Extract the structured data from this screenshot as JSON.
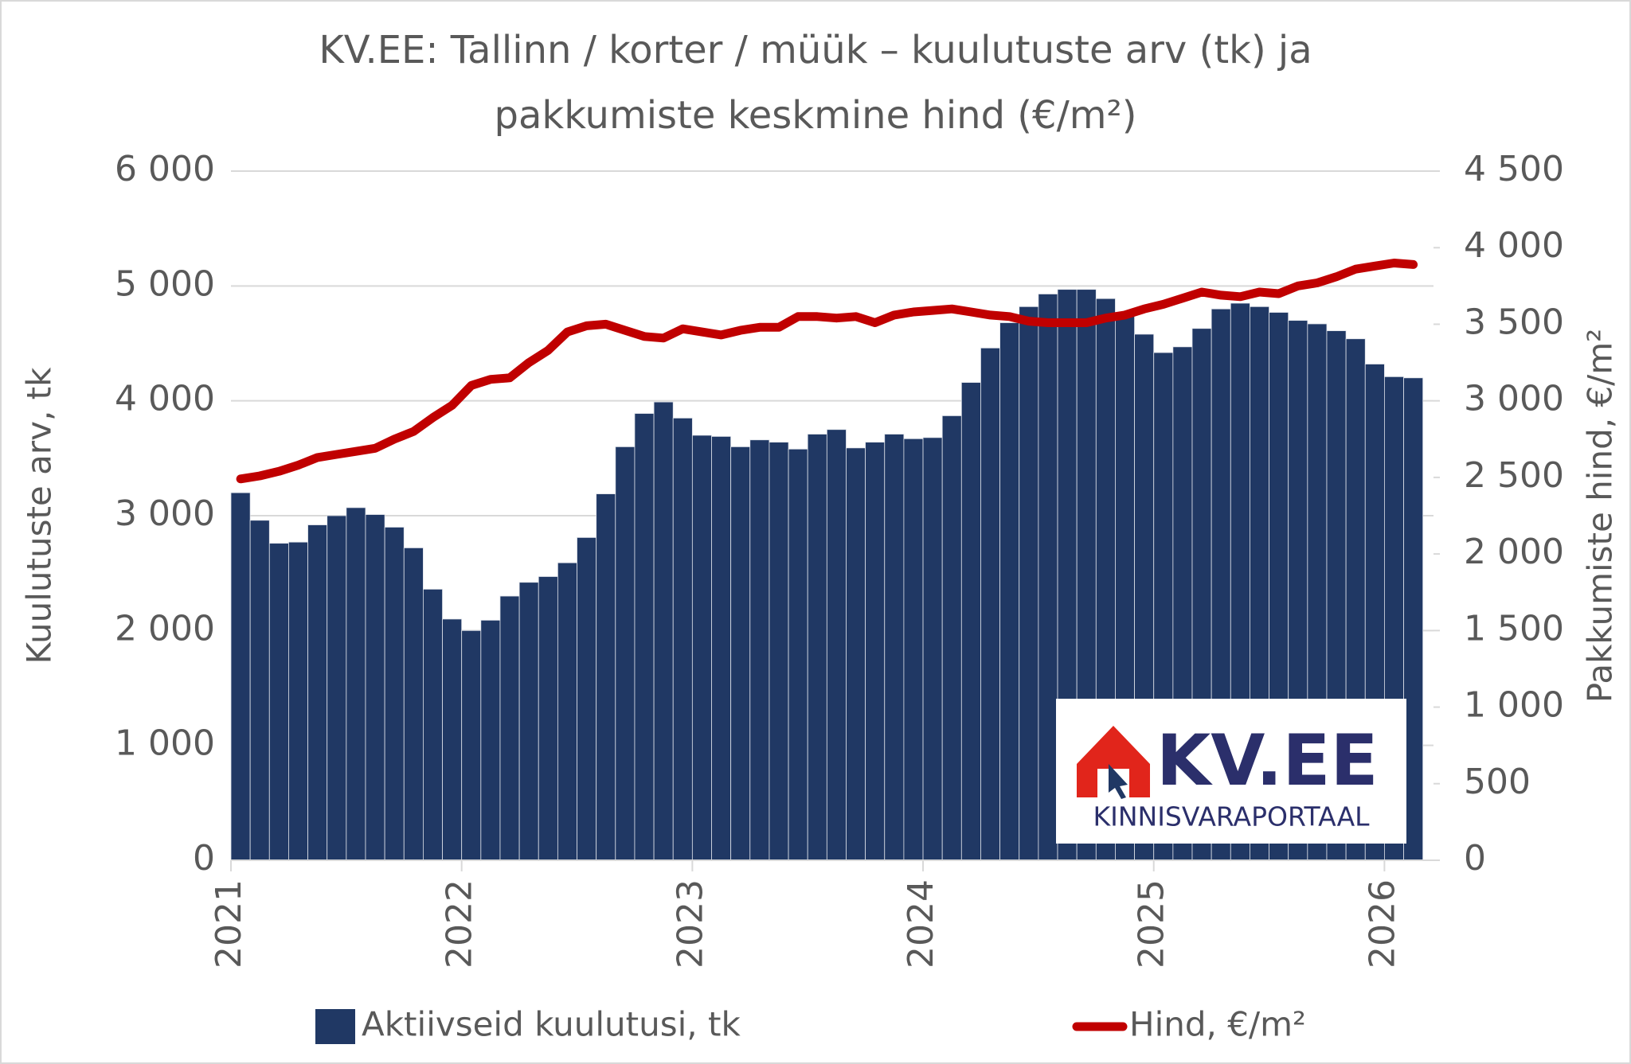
{
  "chart_data": {
    "type": "bar_line",
    "title": [
      "KV.EE: Tallinn / korter / müük – kuulutuste arv (tk) ja",
      "pakkumiste keskmine hind (€/m²)"
    ],
    "y_label": "Kuulutuste arv, tk",
    "y2_label": "Pakkumiste hind, €/m²",
    "categories": [
      "2021",
      null,
      null,
      null,
      null,
      null,
      null,
      null,
      null,
      null,
      null,
      null,
      "2022",
      null,
      null,
      null,
      null,
      null,
      null,
      null,
      null,
      null,
      null,
      null,
      "2023",
      null,
      null,
      null,
      null,
      null,
      null,
      null,
      null,
      null,
      null,
      null,
      "2024",
      null,
      null,
      null,
      null,
      null,
      null,
      null,
      null,
      null,
      null,
      null,
      "2025",
      null,
      null,
      null,
      null,
      null,
      null,
      null,
      null,
      null,
      null,
      null,
      "2026",
      null
    ],
    "series": [
      {
        "name": "Aktiivseid kuulutusi, tk",
        "type": "bar",
        "color": "#203864",
        "values": [
          3200,
          2960,
          2760,
          2770,
          2920,
          3000,
          3070,
          3010,
          2900,
          2720,
          2360,
          2100,
          2000,
          2090,
          2300,
          2420,
          2470,
          2590,
          2810,
          3190,
          3600,
          3890,
          3990,
          3850,
          3700,
          3690,
          3600,
          3660,
          3640,
          3580,
          3710,
          3750,
          3590,
          3640,
          3710,
          3670,
          3680,
          3870,
          4160,
          4460,
          4680,
          4820,
          4930,
          4970,
          4970,
          4890,
          4740,
          4580,
          4420,
          4470,
          4630,
          4800,
          4850,
          4820,
          4770,
          4700,
          4670,
          4610,
          4540,
          4320,
          4210,
          4200
        ]
      },
      {
        "name": "Hind, €/m²",
        "type": "line",
        "color": "#c00000",
        "axis": "y2",
        "values": [
          2490,
          2510,
          2540,
          2580,
          2630,
          2650,
          2670,
          2690,
          2750,
          2800,
          2890,
          2970,
          3100,
          3140,
          3150,
          3250,
          3330,
          3450,
          3490,
          3500,
          3460,
          3420,
          3410,
          3470,
          3450,
          3430,
          3460,
          3480,
          3480,
          3550,
          3550,
          3540,
          3550,
          3510,
          3560,
          3580,
          3590,
          3600,
          3580,
          3560,
          3550,
          3520,
          3510,
          3510,
          3510,
          3540,
          3560,
          3600,
          3630,
          3670,
          3710,
          3690,
          3680,
          3710,
          3700,
          3750,
          3770,
          3810,
          3860,
          3880,
          3900,
          3890
        ]
      }
    ],
    "ylim": [
      0,
      6000
    ],
    "yticks": [
      0,
      {
        "value": 1000,
        "label": "1 000"
      },
      {
        "value": 2000,
        "label": "2 000"
      },
      {
        "value": 3000,
        "label": "3 000"
      },
      {
        "value": 4000,
        "label": "4 000"
      },
      {
        "value": 5000,
        "label": "5 000"
      },
      {
        "value": 6000,
        "label": "6 000"
      }
    ],
    "y2lim": [
      0,
      4500
    ],
    "y2ticks": [
      0,
      500,
      {
        "value": 1000,
        "label": "1 000"
      },
      {
        "value": 1500,
        "label": "1 500"
      },
      {
        "value": 2000,
        "label": "2 000"
      },
      {
        "value": 2500,
        "label": "2 500"
      },
      {
        "value": 3000,
        "label": "3 000"
      },
      {
        "value": 3500,
        "label": "3 500"
      },
      {
        "value": 4000,
        "label": "4 000"
      },
      {
        "value": 4500,
        "label": "4 500"
      }
    ],
    "grid": true,
    "legend": "bottom",
    "logo": {
      "name": "KV.EE",
      "tagline": "KINNISVARAPORTAAL"
    }
  }
}
